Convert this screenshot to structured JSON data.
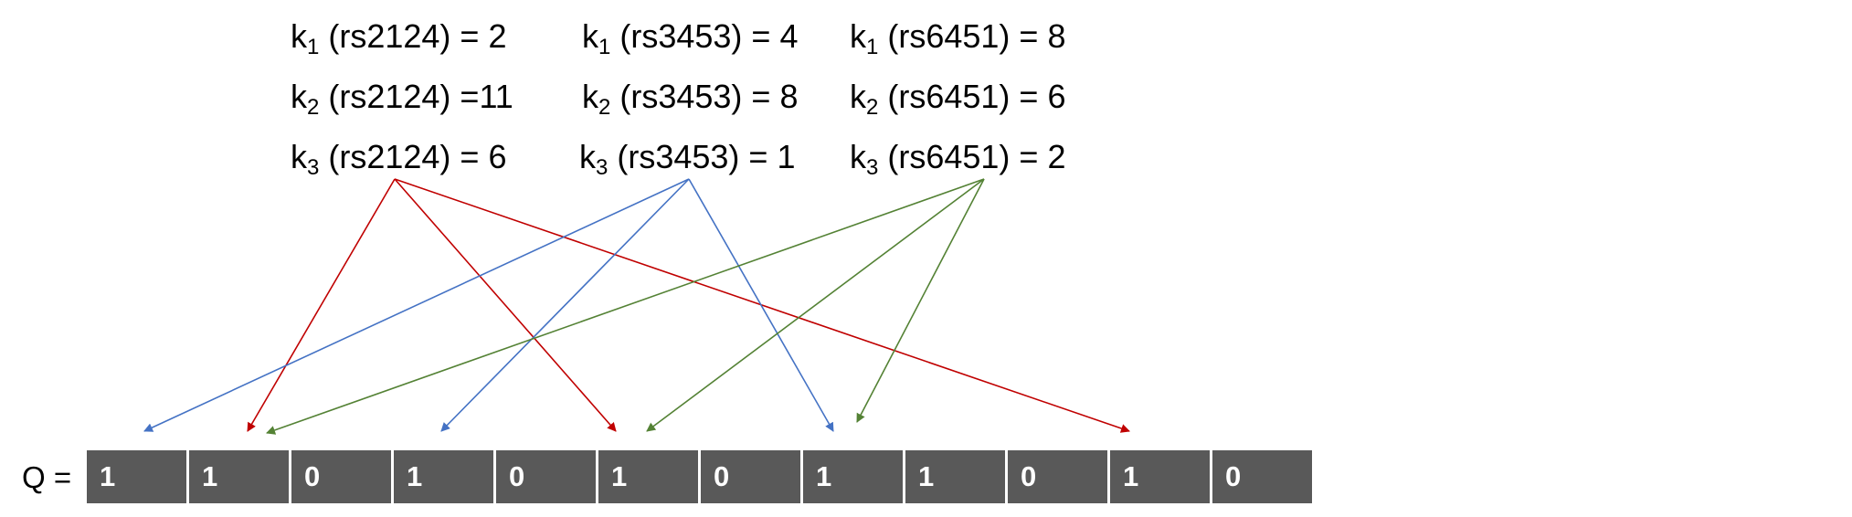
{
  "equations": [
    {
      "k": "k",
      "sub": "1",
      "text": " (rs2124) = 2"
    },
    {
      "k": "k",
      "sub": "1",
      "text": " (rs3453) = 4"
    },
    {
      "k": "k",
      "sub": "1",
      "text": " (rs6451) = 8"
    },
    {
      "k": "k",
      "sub": "2",
      "text": " (rs2124) =11"
    },
    {
      "k": "k",
      "sub": "2",
      "text": " (rs3453) = 8"
    },
    {
      "k": "k",
      "sub": "2",
      "text": " (rs6451) = 6"
    },
    {
      "k": "k",
      "sub": "3",
      "text": " (rs2124) = 6"
    },
    {
      "k": "k",
      "sub": "3",
      "text": " (rs3453) = 1"
    },
    {
      "k": "k",
      "sub": "3",
      "text": " (rs6451) = 2"
    }
  ],
  "q_label": "Q =",
  "bits": [
    "1",
    "1",
    "0",
    "1",
    "0",
    "1",
    "0",
    "1",
    "1",
    "0",
    "1",
    "0"
  ],
  "colors": {
    "red": "#C00000",
    "blue": "#4472C4",
    "green": "#548235",
    "cell": "#595959"
  },
  "arrows": [
    {
      "from": "rs2124",
      "to_bit_index": 2,
      "color": "red"
    },
    {
      "from": "rs2124",
      "to_bit_index": 6,
      "color": "red"
    },
    {
      "from": "rs2124",
      "to_bit_index": 11,
      "color": "red"
    },
    {
      "from": "rs3453",
      "to_bit_index": 1,
      "color": "blue"
    },
    {
      "from": "rs3453",
      "to_bit_index": 4,
      "color": "blue"
    },
    {
      "from": "rs3453",
      "to_bit_index": 8,
      "color": "blue"
    },
    {
      "from": "rs6451",
      "to_bit_index": 2,
      "color": "green"
    },
    {
      "from": "rs6451",
      "to_bit_index": 6,
      "color": "green"
    },
    {
      "from": "rs6451",
      "to_bit_index": 8,
      "color": "green"
    }
  ]
}
